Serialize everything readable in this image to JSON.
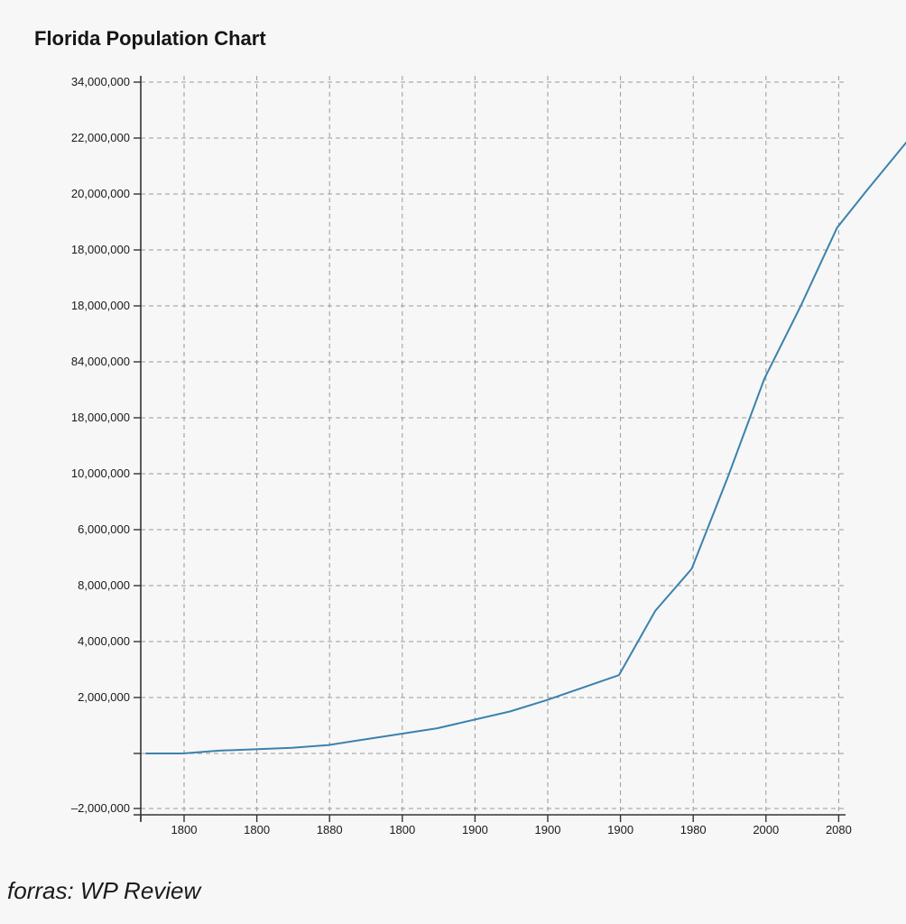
{
  "chart_data": {
    "type": "line",
    "title": "Florida Population Chart",
    "xlabel": "",
    "ylabel": "",
    "x_tick_labels": [
      "1800",
      "1800",
      "1880",
      "1800",
      "1900",
      "1900",
      "1900",
      "1980",
      "2000",
      "2080"
    ],
    "y_tick_labels": [
      "34,000,000",
      "22,000,000",
      "20,000,000",
      "18,000,000",
      "18,000,000",
      "84,000,000",
      "18,000,000",
      "10,000,000",
      "6,000,000",
      "8,000,000",
      "4,000,000",
      "2,000,000",
      "",
      "–2,000,000"
    ],
    "grid": true,
    "series": [
      {
        "color": "#3b82ad",
        "points": [
          {
            "x": 0.0,
            "y": 0.0
          },
          {
            "x": 0.5,
            "y": 0.0
          },
          {
            "x": 1.0,
            "y": 0.1
          },
          {
            "x": 2.0,
            "y": 0.2
          },
          {
            "x": 2.5,
            "y": 0.3
          },
          {
            "x": 3.0,
            "y": 0.5
          },
          {
            "x": 4.0,
            "y": 0.9
          },
          {
            "x": 5.0,
            "y": 1.5
          },
          {
            "x": 5.5,
            "y": 1.9
          },
          {
            "x": 6.5,
            "y": 2.8
          },
          {
            "x": 7.0,
            "y": 5.1
          },
          {
            "x": 7.5,
            "y": 6.6
          },
          {
            "x": 8.0,
            "y": 9.9
          },
          {
            "x": 8.5,
            "y": 13.4
          },
          {
            "x": 9.0,
            "y": 16.0
          },
          {
            "x": 9.5,
            "y": 18.8
          },
          {
            "x": 9.9,
            "y": 20.1
          },
          {
            "x": 10.5,
            "y": 22.0
          }
        ]
      }
    ]
  },
  "source_note": "forras: WP Review"
}
